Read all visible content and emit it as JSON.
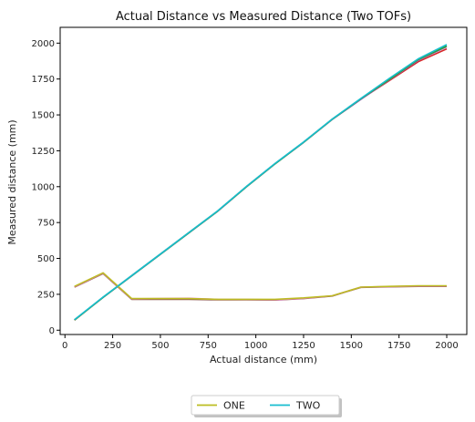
{
  "chart_data": {
    "type": "line",
    "title": "Actual Distance vs Measured Distance (Two TOFs)",
    "xlabel": "Actual distance (mm)",
    "ylabel": "Measured distance (mm)",
    "xlim": [
      -25,
      2105
    ],
    "ylim": [
      -30,
      2110
    ],
    "xticks": [
      0,
      250,
      500,
      750,
      1000,
      1250,
      1500,
      1750,
      2000
    ],
    "yticks": [
      0,
      250,
      500,
      750,
      1000,
      1250,
      1500,
      1750,
      2000
    ],
    "grid": false,
    "legend": {
      "placement": "bottom-center, below chart",
      "entries": [
        {
          "label": "ONE",
          "color": "#bcbd22"
        },
        {
          "label": "TWO",
          "color": "#17becf"
        }
      ]
    },
    "series": [
      {
        "color": "#d62728",
        "x": [
          50,
          200,
          350,
          500,
          650,
          800,
          950,
          1100,
          1250,
          1400,
          1550,
          1700,
          1850,
          2000
        ],
        "y": [
          70,
          230,
          380,
          530,
          680,
          830,
          1000,
          1160,
          1310,
          1470,
          1610,
          1740,
          1870,
          1960
        ]
      },
      {
        "color": "#9467bd",
        "x": [
          50,
          200,
          350,
          500,
          650,
          800,
          950,
          1100,
          1250,
          1400,
          1550,
          1700,
          1850,
          2000
        ],
        "y": [
          72,
          228,
          378,
          528,
          678,
          828,
          998,
          1158,
          1308,
          1468,
          1608,
          1745,
          1880,
          1975
        ]
      },
      {
        "color": "#2ca02c",
        "x": [
          50,
          200,
          350,
          500,
          650,
          800,
          950,
          1100,
          1250,
          1400,
          1550,
          1700,
          1850,
          2000
        ],
        "y": [
          71,
          229,
          379,
          529,
          679,
          829,
          999,
          1159,
          1309,
          1469,
          1612,
          1748,
          1885,
          1980
        ]
      },
      {
        "color": "#8c564b",
        "x": [
          50,
          200,
          350,
          500,
          650,
          800,
          950,
          1100,
          1250,
          1400,
          1550,
          1700,
          1850,
          2000
        ],
        "y": [
          300,
          395,
          215,
          215,
          215,
          212,
          212,
          210,
          220,
          238,
          298,
          302,
          305,
          305
        ]
      },
      {
        "color": "#e377c2",
        "x": [
          50,
          200,
          350,
          500,
          650,
          800,
          950,
          1100,
          1250,
          1400,
          1550,
          1700,
          1850,
          2000
        ],
        "y": [
          302,
          398,
          218,
          220,
          222,
          215,
          214,
          212,
          222,
          240,
          300,
          304,
          308,
          308
        ]
      },
      {
        "name": "ONE",
        "color": "#bcbd22",
        "x": [
          50,
          200,
          350,
          500,
          650,
          800,
          950,
          1100,
          1250,
          1400,
          1550,
          1700,
          1850,
          2000
        ],
        "y": [
          305,
          400,
          220,
          220,
          220,
          215,
          215,
          215,
          225,
          240,
          300,
          305,
          310,
          310
        ]
      },
      {
        "name": "TWO",
        "color": "#17becf",
        "x": [
          50,
          200,
          350,
          500,
          650,
          800,
          950,
          1100,
          1250,
          1400,
          1550,
          1700,
          1850,
          2000
        ],
        "y": [
          73,
          231,
          381,
          531,
          681,
          831,
          1001,
          1161,
          1311,
          1471,
          1615,
          1755,
          1890,
          1990
        ]
      }
    ]
  }
}
